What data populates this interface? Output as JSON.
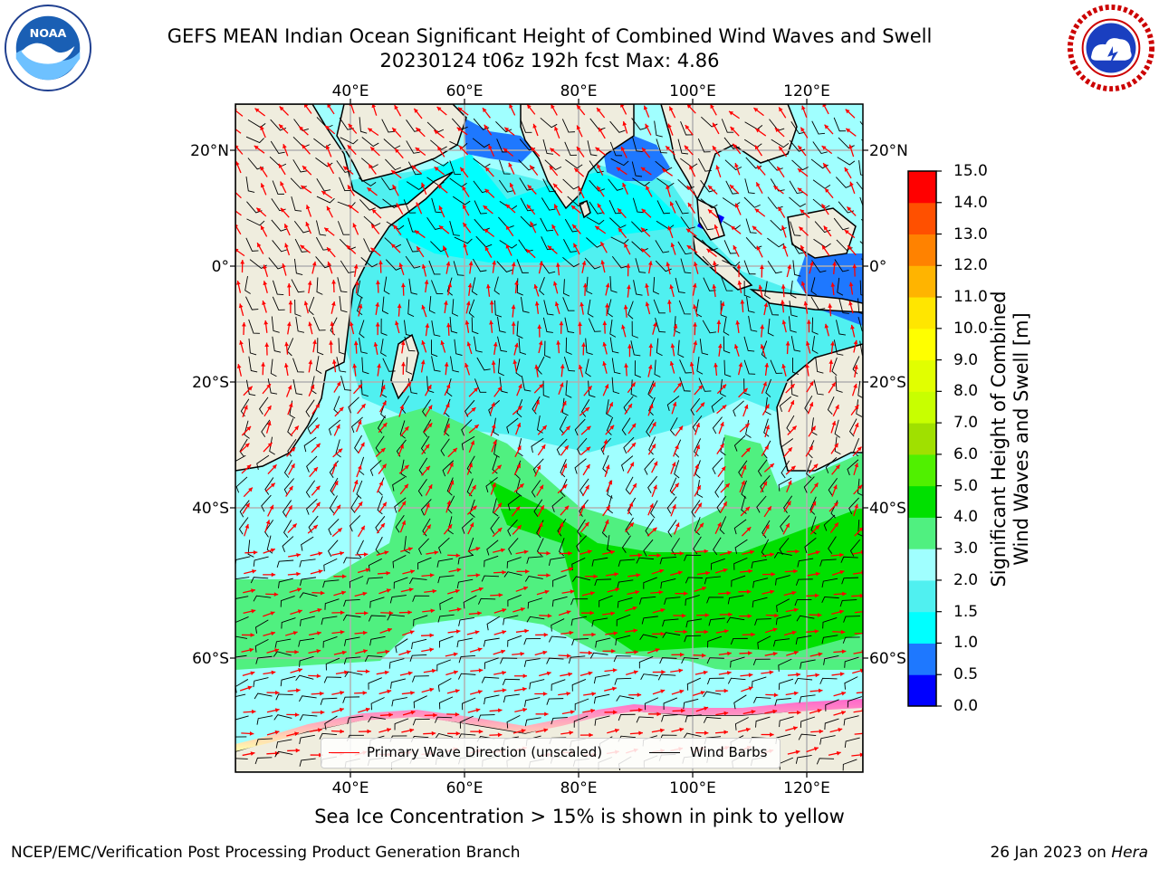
{
  "title_line1": "GEFS MEAN Indian Ocean Significant Height of Combined Wind Waves and Swell",
  "title_line2": "20230124 t06z 192h fcst   Max: 4.86",
  "logos": {
    "left": {
      "name": "noaa-logo",
      "text": "NOAA",
      "ring_text": "NATIONAL OCEANIC AND ATMOSPHERIC ADMINISTRATION · U.S. DEPARTMENT OF COMMERCE"
    },
    "right": {
      "name": "nws-logo",
      "ring_text": "NATIONAL WEATHER SERVICE"
    }
  },
  "map": {
    "lon_labels": [
      "40°E",
      "60°E",
      "80°E",
      "100°E",
      "120°E"
    ],
    "lat_labels": [
      "20°N",
      "0°",
      "20°S",
      "40°S",
      "60°S"
    ],
    "land_color": "#efedde",
    "gridline_color": "#b0b0b0"
  },
  "colorbar": {
    "title_line1": "Significant Height of Combined",
    "title_line2": "Wind Waves and Swell [m]",
    "levels": [
      "0.0",
      "0.5",
      "1.0",
      "1.5",
      "2.0",
      "3.0",
      "4.0",
      "5.0",
      "6.0",
      "7.0",
      "8.0",
      "9.0",
      "10.0",
      "11.0",
      "12.0",
      "13.0",
      "14.0",
      "15.0"
    ],
    "colors": [
      "#0000ff",
      "#1e78ff",
      "#00ffff",
      "#50f0f0",
      "#a0ffff",
      "#50f080",
      "#00e000",
      "#50f000",
      "#a0e000",
      "#c8ff00",
      "#e1ff00",
      "#ffff00",
      "#ffe600",
      "#ffb400",
      "#ff8200",
      "#ff5000",
      "#ff0000"
    ]
  },
  "legend": {
    "wave_label": "Primary Wave Direction (unscaled)",
    "wind_label": "Wind Barbs",
    "wave_color": "#ff0000",
    "wind_color": "#000000"
  },
  "subtitle": "Sea Ice Concentration > 15% is shown in pink to yellow",
  "footer_left": "NCEP/EMC/Verification Post Processing Product Generation Branch",
  "footer_right_prefix": "26 Jan 2023 on ",
  "footer_right_host": "Hera"
}
